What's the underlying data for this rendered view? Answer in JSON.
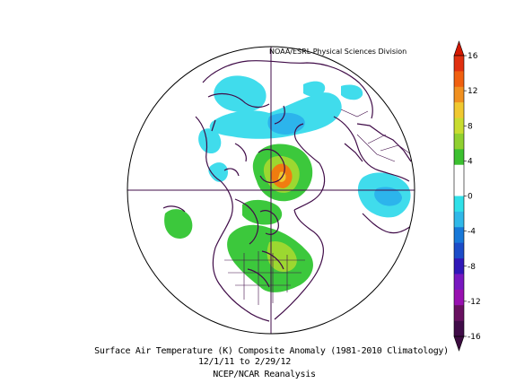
{
  "credit": "NOAA/ESRL Physical Sciences Division",
  "caption": {
    "line1": "Surface Air Temperature (K) Composite Anomaly (1981-2010 Climatology)",
    "line2": "12/1/11  to 2/29/12",
    "line3": "NCEP/NCAR Reanalysis"
  },
  "colorbar": {
    "ticks": [
      "16",
      "12",
      "8",
      "4",
      "0",
      "-4",
      "-8",
      "-12",
      "-16"
    ],
    "colors": [
      "#e03010",
      "#f06010",
      "#f09020",
      "#f0c830",
      "#c8dc30",
      "#90d030",
      "#3cc030",
      "#ffffff",
      "#ffffff",
      "#30e0e8",
      "#30b8e8",
      "#1878d8",
      "#1c4cc8",
      "#3018b8",
      "#7818c0",
      "#9810b0",
      "#681060",
      "#400c48"
    ]
  },
  "colors": {
    "cyan": "#40dcec",
    "lightblue": "#2cb4ec",
    "green": "#3cc83c",
    "lime": "#9cd830",
    "orange": "#f07c10",
    "yellow": "#f0c830",
    "coast": "#400c48"
  }
}
